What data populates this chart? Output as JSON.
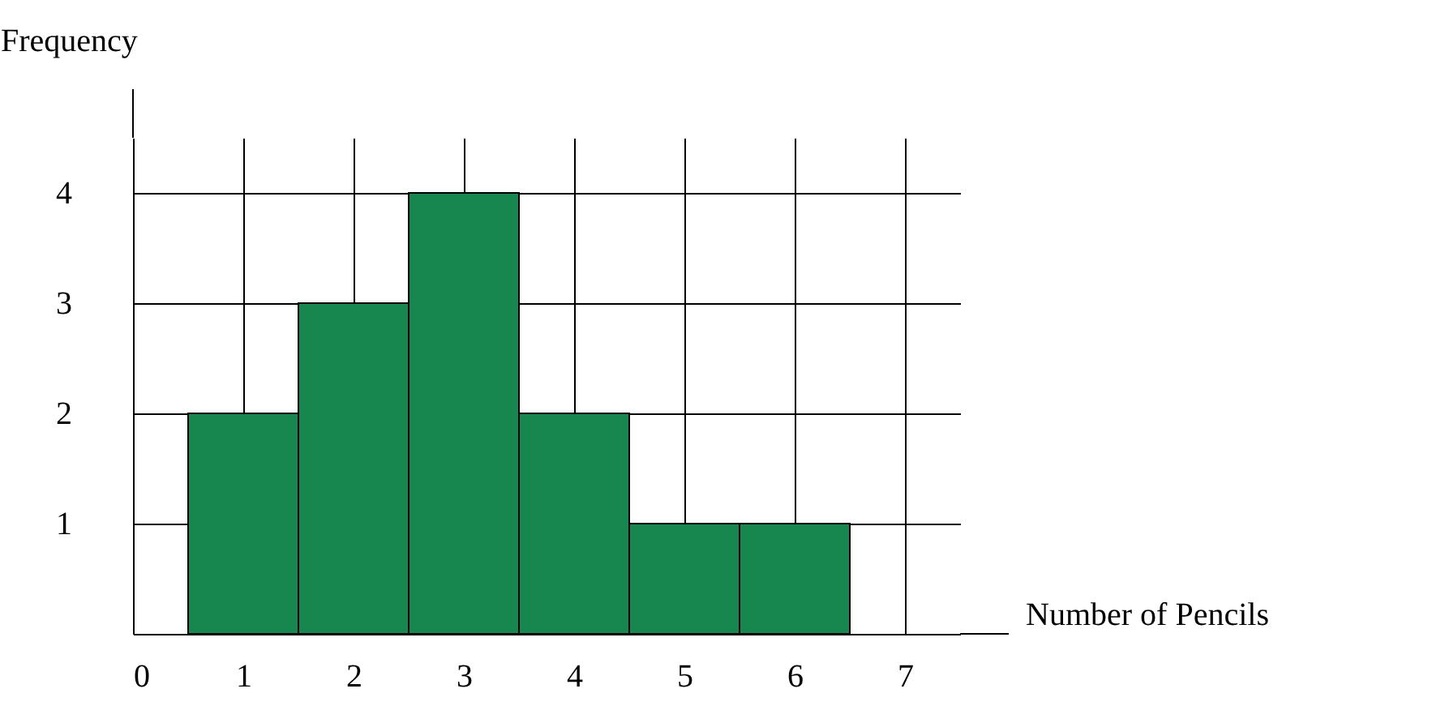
{
  "chart_data": {
    "type": "histogram",
    "xlabel": "Number of Pencils",
    "ylabel": "Frequency",
    "bins": [
      0.5,
      1.5,
      2.5,
      3.5,
      4.5,
      5.5,
      6.5
    ],
    "values": [
      2,
      3,
      4,
      2,
      1,
      1
    ],
    "color": "#17874f",
    "xlim": [
      0,
      7.5
    ],
    "ylim": [
      0,
      4.5
    ],
    "xticks": [
      0,
      1,
      2,
      3,
      4,
      5,
      6,
      7
    ],
    "yticks": [
      1,
      2,
      3,
      4
    ],
    "grid": true
  }
}
